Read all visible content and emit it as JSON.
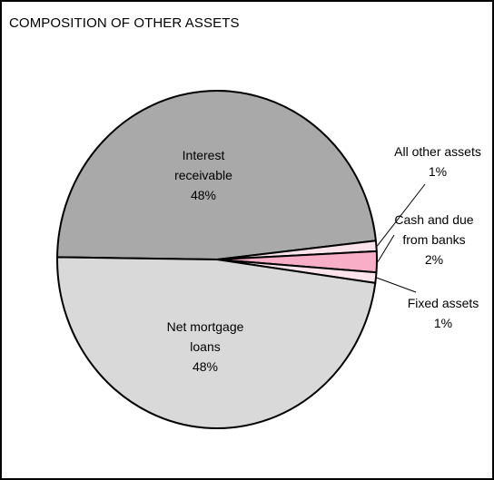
{
  "title": "COMPOSITION OF OTHER ASSETS",
  "chart_data": {
    "type": "pie",
    "title": "COMPOSITION OF OTHER ASSETS",
    "slices": [
      {
        "label": "Interest receivable",
        "label_lines": [
          "Interest",
          "receivable"
        ],
        "pct_text": "48%",
        "value": 48,
        "color": "#a9a9a9"
      },
      {
        "label": "All other assets",
        "label_lines": [
          "All other assets"
        ],
        "pct_text": "1%",
        "value": 1,
        "color": "#fbe3ec"
      },
      {
        "label": "Cash and due from banks",
        "label_lines": [
          "Cash and due",
          "from banks"
        ],
        "pct_text": "2%",
        "value": 2,
        "color": "#f8aec6"
      },
      {
        "label": "Fixed assets",
        "label_lines": [
          "Fixed assets"
        ],
        "pct_text": "1%",
        "value": 1,
        "color": "#fbe3ec"
      },
      {
        "label": "Net mortgage loans",
        "label_lines": [
          "Net mortgage",
          "loans"
        ],
        "pct_text": "48%",
        "value": 48,
        "color": "#d9d9d9"
      }
    ]
  }
}
